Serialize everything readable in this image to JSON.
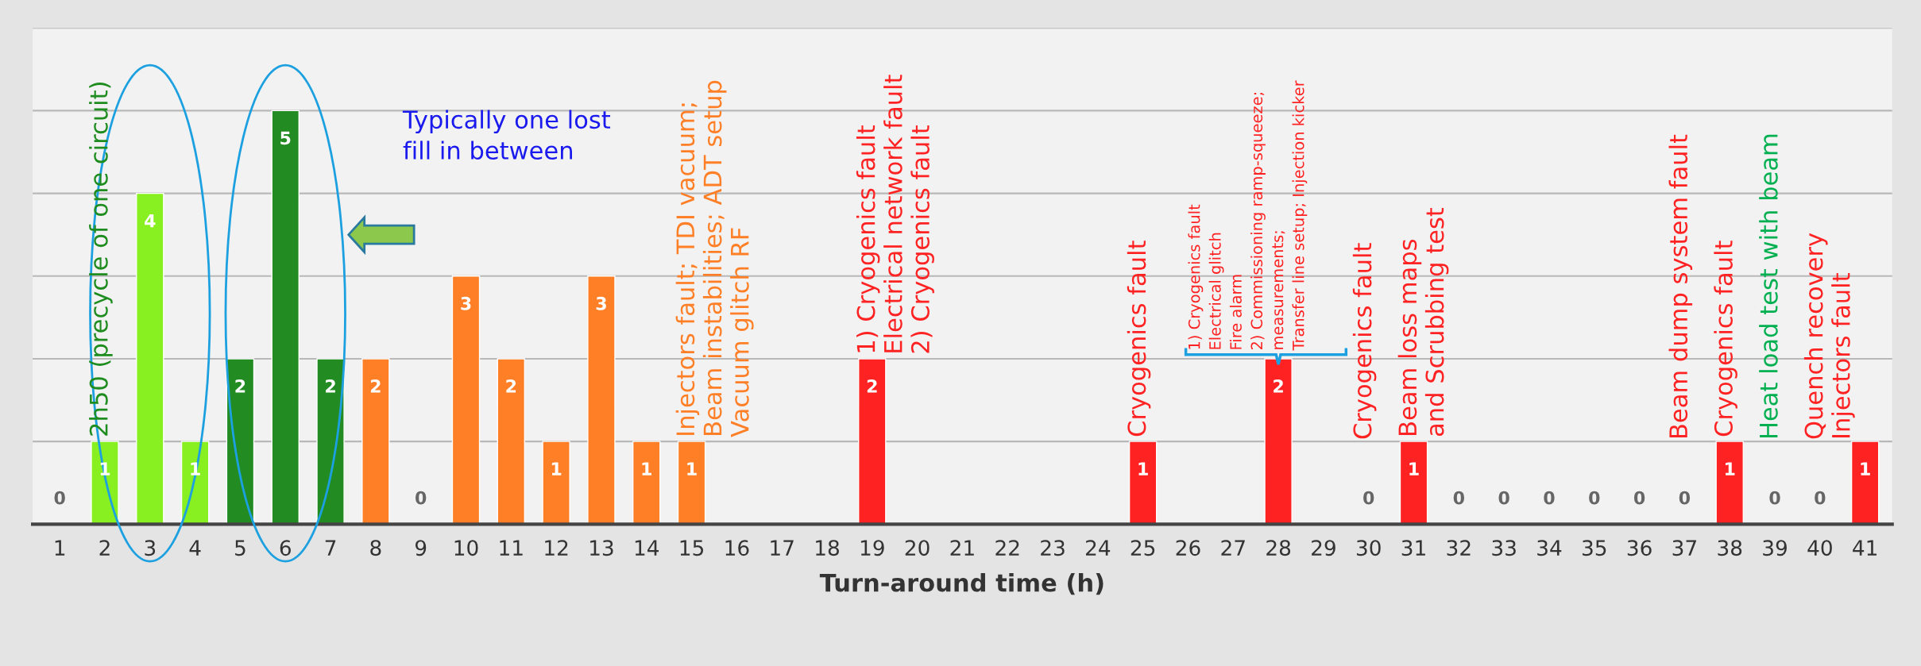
{
  "chart_data": {
    "type": "bar",
    "xlabel": "Turn-around time (h)",
    "categories": [
      "1",
      "2",
      "3",
      "4",
      "5",
      "6",
      "7",
      "8",
      "9",
      "10",
      "11",
      "12",
      "13",
      "14",
      "15",
      "16",
      "17",
      "18",
      "19",
      "20",
      "21",
      "22",
      "23",
      "24",
      "25",
      "26",
      "27",
      "28",
      "29",
      "30",
      "31",
      "32",
      "33",
      "34",
      "35",
      "36",
      "37",
      "38",
      "39",
      "40",
      "41"
    ],
    "values": [
      0,
      1,
      4,
      1,
      2,
      5,
      2,
      2,
      0,
      3,
      2,
      1,
      3,
      1,
      1,
      0,
      0,
      0,
      2,
      0,
      0,
      0,
      0,
      0,
      1,
      0,
      0,
      2,
      0,
      0,
      1,
      0,
      0,
      0,
      0,
      0,
      0,
      1,
      0,
      0,
      1
    ],
    "colors": [
      null,
      "#88f020",
      "#88f020",
      "#88f020",
      "#228b22",
      "#228b22",
      "#228b22",
      "#ff7f27",
      null,
      "#ff7f27",
      "#ff7f27",
      "#ff7f27",
      "#ff7f27",
      "#ff7f27",
      "#ff7f27",
      null,
      null,
      null,
      "#ff2222",
      null,
      null,
      null,
      null,
      null,
      "#ff2222",
      null,
      null,
      "#ff2222",
      null,
      null,
      "#ff2222",
      null,
      null,
      null,
      null,
      null,
      null,
      "#ff2222",
      null,
      null,
      "#ff2222"
    ],
    "value_labels": [
      "0",
      "1",
      "4",
      "1",
      "2",
      "5",
      "2",
      "2",
      "0",
      "3",
      "2",
      "1",
      "3",
      "1",
      "1",
      null,
      null,
      null,
      "2",
      null,
      null,
      null,
      null,
      null,
      "1",
      null,
      null,
      "2",
      null,
      "0",
      "1",
      "0",
      "0",
      "0",
      "0",
      "0",
      "0",
      "1",
      "0",
      "0",
      "1"
    ],
    "ylim": [
      0,
      6
    ],
    "yticks": [
      {
        "value": 0,
        "label": null
      },
      {
        "value": 1,
        "label": null
      },
      {
        "value": 2,
        "label": null
      },
      {
        "value": 3,
        "label": null
      },
      {
        "value": 4,
        "label": null
      },
      {
        "value": 5,
        "label": null
      },
      {
        "value": 6,
        "label": null
      }
    ],
    "tick_labels": "x",
    "grid": "y",
    "annotations": [
      {
        "text": "2h50 (precycle of one circuit)",
        "x": "2",
        "y": 1
      },
      "Typically one lost\nfill in between",
      {
        "text": "Injectors fault; TDI vacuum;\nBeam instabilities; ADT setup\nVacuum glitch RF",
        "x": "15",
        "y": 1
      },
      {
        "text": "1) Cryogenics fault\nElectrical network fault\n2) Cryogenics fault",
        "x": "19",
        "y": 2
      },
      {
        "text": "Cryogenics fault",
        "x": "25",
        "y": 1
      },
      {
        "text": "1) Cryogenics fault\nElectrical glitch\nFire alarm\n2) Commissioning ramp-squeeze;\nmeasurements;\nTransfer line setup; Injection kicker",
        "x": "28",
        "y": 2
      },
      "Cryogenics fault",
      {
        "text": "Beam loss maps\nand Scrubbing test",
        "x": "31",
        "y": 1
      },
      "Beam dump system fault",
      {
        "text": "Cryogenics fault",
        "x": "38",
        "y": 1
      },
      "Heat load test with beam",
      "Quench recovery\nInjectors fault"
    ]
  }
}
